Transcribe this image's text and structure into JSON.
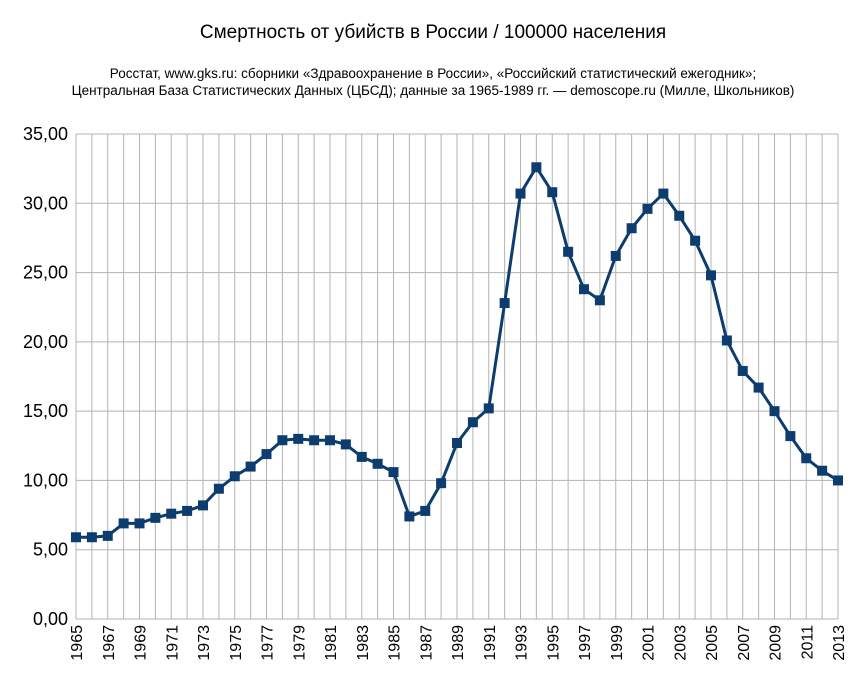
{
  "chart_data": {
    "type": "line",
    "title": "Смертность от убийств в России / 100000 населения",
    "subtitle_lines": [
      "Росстат, www.gks.ru: сборники «Здравоохранение в России», «Российский статистический ежегодник»;",
      "Центральная База Статистических Данных (ЦБСД);  данные за 1965-1989 гг. — demoscope.ru (Милле, Школьников)"
    ],
    "xlabel": "",
    "ylabel": "",
    "ylim": [
      0,
      35
    ],
    "y_ticks": [
      "0,00",
      "5,00",
      "10,00",
      "15,00",
      "20,00",
      "25,00",
      "30,00",
      "35,00"
    ],
    "x_tick_labels": [
      "1965",
      "1967",
      "1969",
      "1971",
      "1973",
      "1975",
      "1977",
      "1979",
      "1981",
      "1983",
      "1985",
      "1987",
      "1989",
      "1991",
      "1993",
      "1995",
      "1997",
      "1999",
      "2001",
      "2003",
      "2005",
      "2007",
      "2009",
      "2011",
      "2013"
    ],
    "grid": true,
    "legend": "none",
    "color": "#0d3c6e",
    "marker": "square",
    "series": [
      {
        "x": [
          1965,
          1966,
          1967,
          1968,
          1969,
          1970,
          1971,
          1972,
          1973,
          1974,
          1975,
          1976,
          1977,
          1978,
          1979,
          1980,
          1981,
          1982,
          1983,
          1984,
          1985,
          1986,
          1987,
          1988,
          1989,
          1990,
          1991,
          1992,
          1993,
          1994,
          1995,
          1996,
          1997,
          1998,
          1999,
          2000,
          2001,
          2002,
          2003,
          2004,
          2005,
          2006,
          2007,
          2008,
          2009,
          2010,
          2011,
          2012,
          2013
        ],
        "values": [
          5.9,
          5.9,
          6.0,
          6.9,
          6.9,
          7.3,
          7.6,
          7.8,
          8.2,
          9.4,
          10.3,
          11.0,
          11.9,
          12.9,
          13.0,
          12.9,
          12.9,
          12.6,
          11.7,
          11.2,
          10.6,
          7.4,
          7.8,
          9.8,
          12.7,
          14.2,
          15.2,
          22.8,
          30.7,
          32.6,
          30.8,
          26.5,
          23.8,
          23.0,
          26.2,
          28.2,
          29.6,
          30.7,
          29.1,
          27.3,
          24.8,
          20.1,
          17.9,
          16.7,
          15.0,
          13.2,
          11.6,
          10.7,
          10.0
        ]
      }
    ]
  }
}
